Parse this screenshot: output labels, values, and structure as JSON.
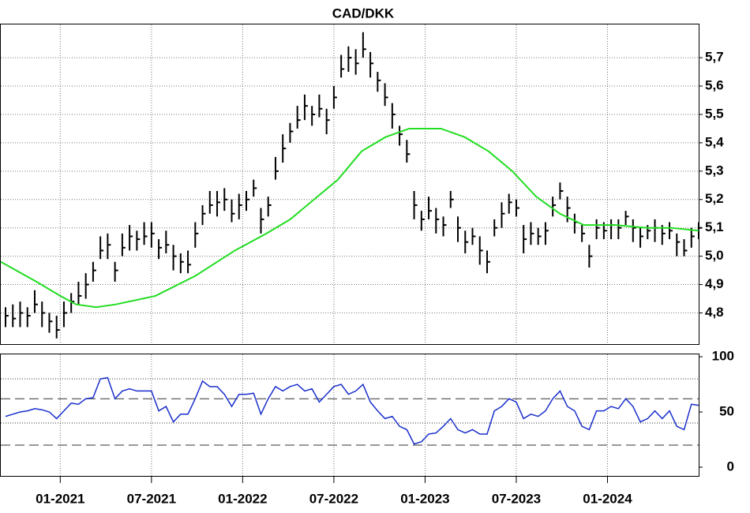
{
  "chart_data": [
    {
      "type": "ohlc",
      "title": "CAD/DKK",
      "x": [
        2020.7,
        2020.74,
        2020.78,
        2020.82,
        2020.86,
        2020.9,
        2020.94,
        2020.98,
        2021.02,
        2021.06,
        2021.1,
        2021.14,
        2021.18,
        2021.22,
        2021.26,
        2021.3,
        2021.34,
        2021.38,
        2021.42,
        2021.46,
        2021.5,
        2021.54,
        2021.58,
        2021.62,
        2021.66,
        2021.7,
        2021.74,
        2021.78,
        2021.82,
        2021.86,
        2021.9,
        2021.94,
        2021.98,
        2022.02,
        2022.06,
        2022.1,
        2022.14,
        2022.18,
        2022.22,
        2022.26,
        2022.3,
        2022.34,
        2022.38,
        2022.42,
        2022.46,
        2022.5,
        2022.54,
        2022.58,
        2022.62,
        2022.66,
        2022.7,
        2022.74,
        2022.78,
        2022.82,
        2022.86,
        2022.9,
        2022.94,
        2022.98,
        2023.02,
        2023.06,
        2023.1,
        2023.14,
        2023.18,
        2023.22,
        2023.26,
        2023.3,
        2023.34,
        2023.38,
        2023.42,
        2023.46,
        2023.5,
        2023.54,
        2023.58,
        2023.62,
        2023.66,
        2023.7,
        2023.74,
        2023.78,
        2023.82,
        2023.86,
        2023.9,
        2023.94,
        2023.98,
        2024.02,
        2024.06,
        2024.1,
        2024.14,
        2024.18,
        2024.22,
        2024.26,
        2024.3,
        2024.34,
        2024.38,
        2024.42,
        2024.46,
        2024.5
      ],
      "high": [
        4.82,
        4.83,
        4.84,
        4.82,
        4.88,
        4.84,
        4.8,
        4.79,
        4.84,
        4.87,
        4.91,
        4.94,
        4.98,
        5.07,
        5.08,
        4.98,
        5.08,
        5.11,
        5.09,
        5.12,
        5.12,
        5.06,
        5.09,
        5.04,
        5.01,
        5.02,
        5.12,
        5.18,
        5.23,
        5.23,
        5.24,
        5.2,
        5.22,
        5.23,
        5.27,
        5.17,
        5.21,
        5.35,
        5.43,
        5.47,
        5.53,
        5.57,
        5.53,
        5.57,
        5.52,
        5.6,
        5.71,
        5.74,
        5.73,
        5.79,
        5.72,
        5.65,
        5.61,
        5.54,
        5.46,
        5.41,
        5.23,
        5.16,
        5.21,
        5.17,
        5.14,
        5.23,
        5.14,
        5.09,
        5.1,
        5.07,
        5.02,
        5.13,
        5.19,
        5.22,
        5.2,
        5.11,
        5.12,
        5.1,
        5.12,
        5.21,
        5.26,
        5.21,
        5.15,
        5.11,
        5.04,
        5.13,
        5.12,
        5.13,
        5.13,
        5.16,
        5.13,
        5.1,
        5.11,
        5.13,
        5.11,
        5.12,
        5.08,
        5.06,
        5.1,
        5.12
      ],
      "low": [
        4.75,
        4.75,
        4.75,
        4.75,
        4.8,
        4.75,
        4.73,
        4.71,
        4.75,
        4.8,
        4.83,
        4.85,
        4.91,
        4.99,
        4.99,
        4.91,
        5.0,
        5.02,
        5.02,
        5.04,
        5.03,
        4.99,
        5.01,
        4.95,
        4.94,
        4.94,
        5.03,
        5.11,
        5.15,
        5.14,
        5.16,
        5.12,
        5.13,
        5.16,
        5.21,
        5.08,
        5.14,
        5.27,
        5.33,
        5.4,
        5.45,
        5.48,
        5.46,
        5.49,
        5.43,
        5.52,
        5.63,
        5.65,
        5.64,
        5.7,
        5.63,
        5.58,
        5.53,
        5.45,
        5.39,
        5.33,
        5.13,
        5.09,
        5.13,
        5.08,
        5.07,
        5.17,
        5.05,
        5.01,
        5.04,
        4.97,
        4.94,
        5.07,
        5.1,
        5.15,
        5.14,
        5.01,
        5.04,
        5.04,
        5.04,
        5.14,
        5.2,
        5.12,
        5.08,
        5.05,
        4.96,
        5.06,
        5.06,
        5.06,
        5.06,
        5.11,
        5.05,
        5.03,
        5.06,
        5.05,
        5.04,
        5.06,
        5.0,
        5.0,
        5.03,
        5.06
      ],
      "close": [
        4.79,
        4.78,
        4.8,
        4.79,
        4.83,
        4.8,
        4.77,
        4.74,
        4.8,
        4.84,
        4.86,
        4.9,
        4.95,
        5.02,
        5.04,
        4.95,
        5.03,
        5.07,
        5.06,
        5.07,
        5.08,
        5.03,
        5.04,
        5.0,
        4.98,
        4.97,
        5.08,
        5.15,
        5.18,
        5.19,
        5.2,
        5.15,
        5.18,
        5.2,
        5.24,
        5.13,
        5.18,
        5.3,
        5.38,
        5.44,
        5.48,
        5.53,
        5.5,
        5.52,
        5.48,
        5.56,
        5.66,
        5.7,
        5.68,
        5.73,
        5.68,
        5.62,
        5.56,
        5.5,
        5.43,
        5.36,
        5.18,
        5.13,
        5.16,
        5.13,
        5.11,
        5.2,
        5.1,
        5.05,
        5.07,
        5.02,
        4.98,
        5.1,
        5.15,
        5.19,
        5.17,
        5.06,
        5.08,
        5.07,
        5.09,
        5.18,
        5.23,
        5.17,
        5.12,
        5.08,
        5.0,
        5.1,
        5.09,
        5.11,
        5.1,
        5.14,
        5.1,
        5.07,
        5.09,
        5.1,
        5.08,
        5.09,
        5.05,
        5.02,
        5.07,
        5.1
      ],
      "color": "#000000",
      "series": [
        {
          "color": "#22dd22",
          "x": [
            2020.674,
            2020.87,
            2021.0,
            2021.087,
            2021.196,
            2021.304,
            2021.522,
            2021.739,
            2021.957,
            2022.13,
            2022.261,
            2022.391,
            2022.522,
            2022.652,
            2022.783,
            2022.913,
            2023.087,
            2023.217,
            2023.348,
            2023.478,
            2023.609,
            2023.739,
            2023.87,
            2024.043,
            2024.217,
            2024.348,
            2024.5
          ],
          "values": [
            4.98,
            4.91,
            4.86,
            4.83,
            4.82,
            4.83,
            4.86,
            4.93,
            5.02,
            5.08,
            5.13,
            5.2,
            5.27,
            5.37,
            5.42,
            5.45,
            5.45,
            5.42,
            5.37,
            5.3,
            5.21,
            5.15,
            5.11,
            5.11,
            5.1,
            5.1,
            5.09
          ]
        }
      ],
      "ylim": [
        4.69,
        5.82
      ],
      "yticks": [
        {
          "value": 4.8,
          "label": "4,8"
        },
        {
          "value": 4.9,
          "label": "4,9"
        },
        {
          "value": 5.0,
          "label": "5,0"
        },
        {
          "value": 5.1,
          "label": "5,1"
        },
        {
          "value": 5.2,
          "label": "5,2"
        },
        {
          "value": 5.3,
          "label": "5,3"
        },
        {
          "value": 5.4,
          "label": "5,4"
        },
        {
          "value": 5.5,
          "label": "5,5"
        },
        {
          "value": 5.6,
          "label": "5,6"
        },
        {
          "value": 5.7,
          "label": "5,7"
        }
      ],
      "grid": true
    },
    {
      "type": "line",
      "values": [
        46,
        48,
        50,
        51,
        53,
        52,
        50,
        44,
        51,
        58,
        57,
        62,
        63,
        80,
        81,
        62,
        69,
        71,
        69,
        69,
        69,
        51,
        55,
        41,
        48,
        48,
        62,
        78,
        73,
        73,
        66,
        55,
        66,
        66,
        67,
        48,
        62,
        73,
        69,
        73,
        75,
        69,
        71,
        59,
        66,
        73,
        75,
        66,
        69,
        75,
        59,
        51,
        44,
        46,
        37,
        34,
        21,
        23,
        30,
        31,
        37,
        44,
        34,
        31,
        34,
        30,
        30,
        51,
        55,
        62,
        59,
        44,
        48,
        46,
        51,
        62,
        69,
        55,
        51,
        37,
        34,
        51,
        51,
        55,
        53,
        62,
        55,
        41,
        44,
        51,
        44,
        51,
        37,
        34,
        57,
        56
      ],
      "color": "#1a2fcc",
      "ylim": [
        -7.9,
        102.9
      ],
      "yticks": [
        0,
        50,
        100
      ],
      "hlines": [
        80,
        62,
        40,
        20
      ],
      "xlim": [
        2020.674,
        2024.5
      ],
      "xticks": [
        {
          "value": 2021.0,
          "label": "01-2021"
        },
        {
          "value": 2021.5,
          "label": "07-2021"
        },
        {
          "value": 2022.0,
          "label": "01-2022"
        },
        {
          "value": 2022.5,
          "label": "07-2022"
        },
        {
          "value": 2023.0,
          "label": "01-2023"
        },
        {
          "value": 2023.5,
          "label": "07-2023"
        },
        {
          "value": 2024.0,
          "label": "01-2024"
        }
      ]
    }
  ]
}
